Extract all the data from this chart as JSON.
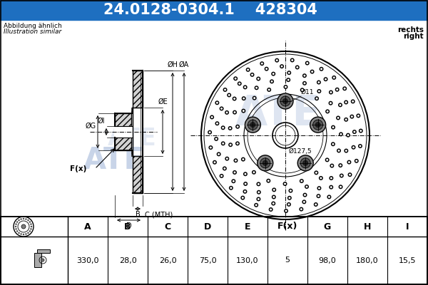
{
  "title_part_number": "24.0128-0304.1",
  "title_ref_number": "428304",
  "header_bg": "#1e6fc0",
  "header_text_color": "#ffffff",
  "bg_color": "#ffffff",
  "note_line1": "Abbildung ähnlich",
  "note_line2": "Illustration similar",
  "side_note_line1": "rechts",
  "side_note_line2": "right",
  "table_headers": [
    "A",
    "B",
    "C",
    "D",
    "E",
    "F(x)",
    "G",
    "H",
    "I"
  ],
  "table_values": [
    "330,0",
    "28,0",
    "26,0",
    "75,0",
    "130,0",
    "5",
    "98,0",
    "180,0",
    "15,5"
  ],
  "watermark_color": "#c8d4e8",
  "line_color": "#000000"
}
